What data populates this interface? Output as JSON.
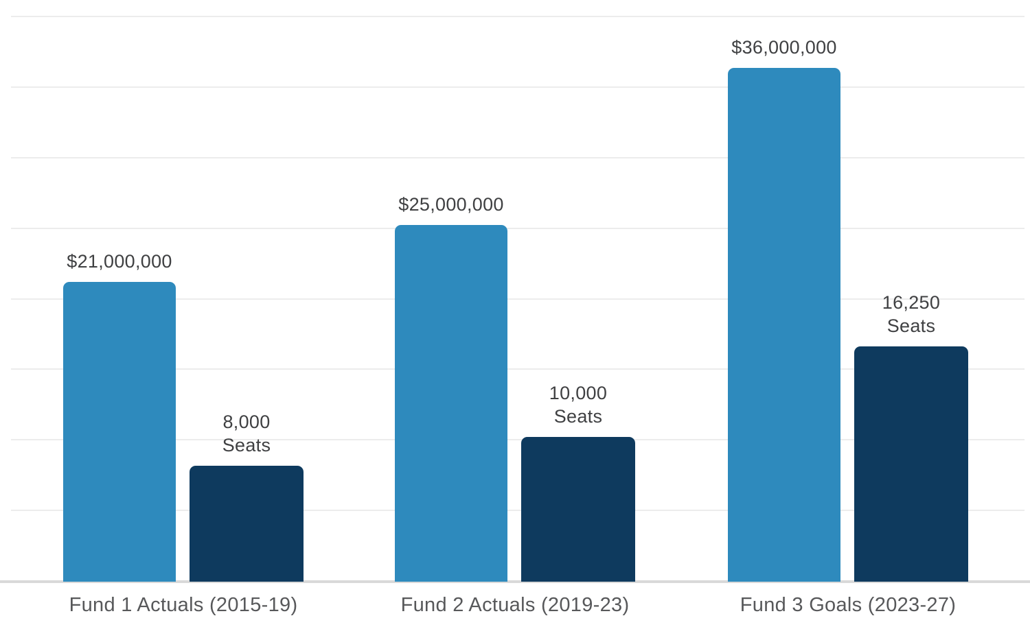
{
  "chart_data": {
    "type": "bar",
    "title": "",
    "subtitle": "",
    "categories": [
      "Fund 1 Actuals (2015-19)",
      "Fund 2 Actuals (2019-23)",
      "Fund 3 Goals (2023-27)"
    ],
    "series": [
      {
        "name": "Dollars",
        "values": [
          21000000,
          25000000,
          36000000
        ],
        "labels": [
          [
            "$21,000,000"
          ],
          [
            "$25,000,000"
          ],
          [
            "$36,000,000"
          ]
        ],
        "color": "#2e8abd"
      },
      {
        "name": "Seats",
        "values": [
          8000,
          10000,
          16250
        ],
        "labels": [
          [
            "8,000",
            "Seats"
          ],
          [
            "10,000",
            "Seats"
          ],
          [
            "16,250",
            "Seats"
          ]
        ],
        "color": "#0e3a5e"
      }
    ],
    "xlabel": "",
    "ylabel": "",
    "ylim_primary_dollars": [
      0,
      40000000
    ],
    "gridline_step_dollars": 5000000,
    "grid": true,
    "legend": false,
    "legend_position": "none",
    "colors": {
      "bar_dollars": "#2e8abd",
      "bar_seats": "#0e3a5e",
      "gridline": "#ececec",
      "axis_line": "#d9d9d9",
      "value_label": "#3f4042",
      "category_label": "#57585a",
      "background": "#ffffff"
    }
  }
}
